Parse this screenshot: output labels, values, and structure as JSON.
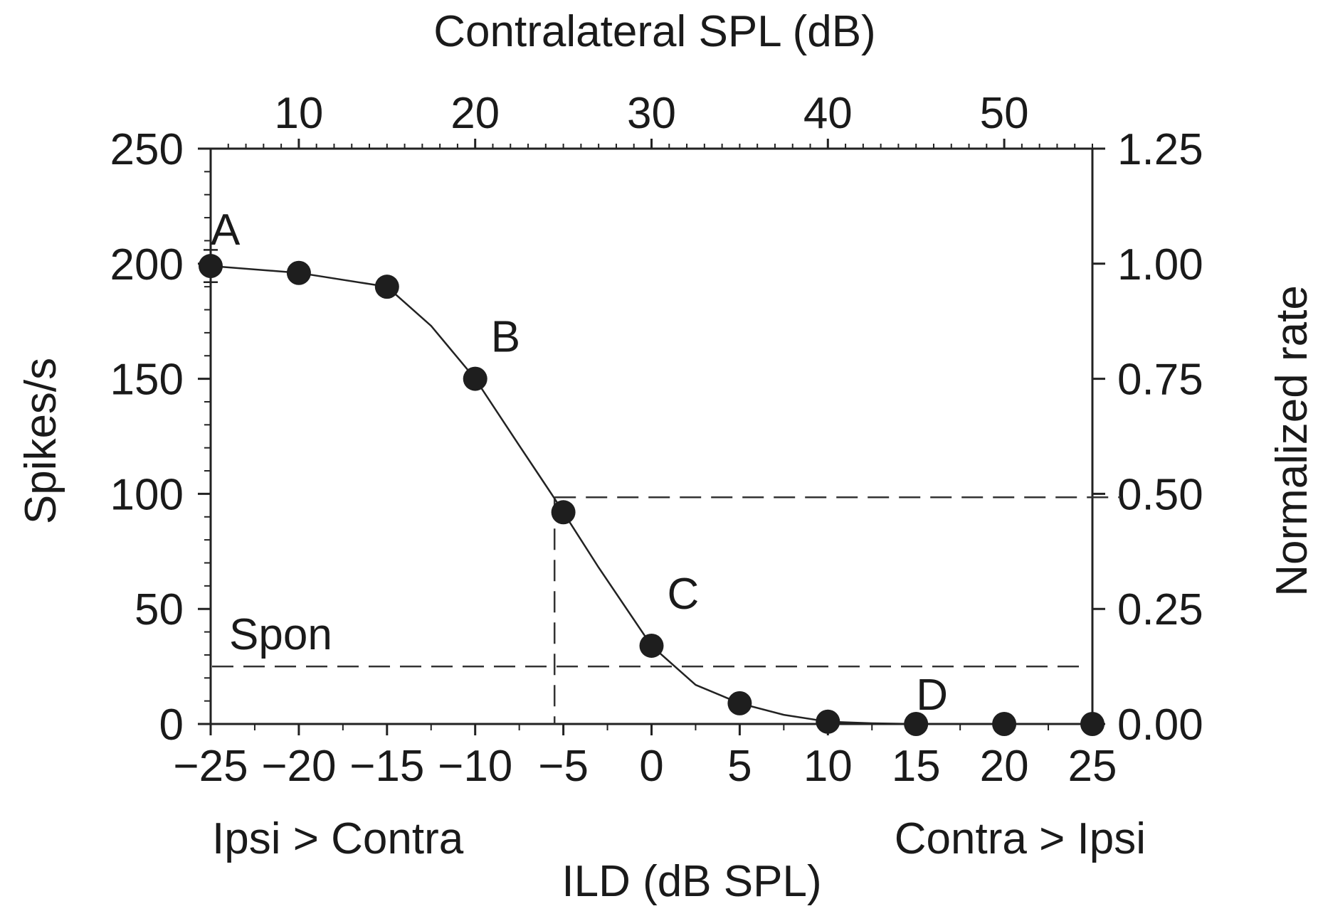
{
  "chart_data": {
    "type": "line",
    "x_axis": {
      "label": "ILD (dB SPL)",
      "range": [
        -25,
        25
      ],
      "ticks": [
        "−25",
        "−20",
        "−15",
        "−10",
        "−5",
        "0",
        "5",
        "10",
        "15",
        "20",
        "25"
      ],
      "tick_values": [
        -25,
        -20,
        -15,
        -10,
        -5,
        0,
        5,
        10,
        15,
        20,
        25
      ],
      "left_note": "Ipsi > Contra",
      "right_note": "Contra > Ipsi"
    },
    "top_axis": {
      "label": "Contralateral SPL (dB)",
      "ticks": [
        "10",
        "20",
        "30",
        "40",
        "50"
      ],
      "tick_values": [
        10,
        20,
        30,
        40,
        50
      ],
      "ild_of_zero": -30
    },
    "left_axis": {
      "label": "Spikes/s",
      "range": [
        0,
        250
      ],
      "ticks": [
        "0",
        "50",
        "100",
        "150",
        "200",
        "250"
      ],
      "tick_values": [
        0,
        50,
        100,
        150,
        200,
        250
      ]
    },
    "right_axis": {
      "label": "Normalized rate",
      "ticks": [
        "0.00",
        "0.25",
        "0.50",
        "0.75",
        "1.00",
        "1.25"
      ],
      "tick_values": [
        0,
        0.25,
        0.5,
        0.75,
        1.0,
        1.25
      ]
    },
    "series": [
      {
        "x": [
          -25,
          -20,
          -15,
          -10,
          -5,
          0,
          5,
          10,
          15,
          20,
          25
        ],
        "y": [
          199,
          196,
          190,
          150,
          92,
          34,
          9,
          1,
          0,
          0,
          0
        ],
        "error": [
          7,
          3,
          3,
          0,
          0,
          0,
          0,
          0,
          0,
          0,
          0
        ]
      }
    ],
    "curve": {
      "x": [
        -25,
        -20,
        -15,
        -12.5,
        -10,
        -7.5,
        -5.5,
        -3,
        0,
        2.5,
        5,
        7.5,
        10,
        12.5,
        15,
        20,
        25
      ],
      "y": [
        199,
        196,
        190,
        173,
        150,
        121,
        98,
        68,
        34,
        17,
        9,
        4,
        1,
        0.3,
        0,
        0,
        0
      ]
    },
    "annotations": [
      {
        "text": "A",
        "x": -25,
        "y": 199
      },
      {
        "text": "B",
        "x": -10,
        "y": 150
      },
      {
        "text": "C",
        "x": 0,
        "y": 34
      },
      {
        "text": "D",
        "x": 15,
        "y": 0
      }
    ],
    "reference_lines": {
      "spon": {
        "label": "Spon",
        "y": 25
      },
      "half_max": {
        "y": 98.5,
        "x": -5.5
      }
    }
  }
}
